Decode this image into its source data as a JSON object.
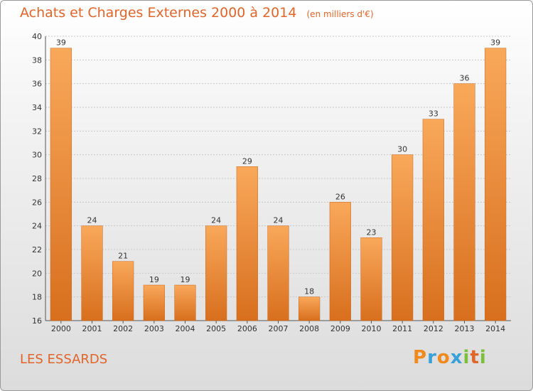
{
  "chart_data": {
    "type": "bar",
    "title": "Achats et Charges Externes 2000 à 2014",
    "subtitle": "(en milliers d'€)",
    "categories": [
      "2000",
      "2001",
      "2002",
      "2003",
      "2004",
      "2005",
      "2006",
      "2007",
      "2008",
      "2009",
      "2010",
      "2011",
      "2012",
      "2013",
      "2014"
    ],
    "values": [
      39,
      24,
      21,
      19,
      19,
      24,
      29,
      24,
      18,
      26,
      23,
      30,
      33,
      36,
      39
    ],
    "ylim": [
      16,
      40
    ],
    "yticks": [
      16,
      18,
      20,
      22,
      24,
      26,
      28,
      30,
      32,
      34,
      36,
      38,
      40
    ],
    "grid": true,
    "bar_color": "#e8832f"
  },
  "place": "LES ESSARDS",
  "brand": {
    "letters": [
      "P",
      "r",
      "o",
      "x",
      "i",
      "t",
      "i"
    ],
    "colors": [
      "#f08a1c",
      "#3aa0d8",
      "#f08a1c",
      "#3aa0d8",
      "#7cbf3a",
      "#e0652a",
      "#7cbf3a"
    ]
  }
}
